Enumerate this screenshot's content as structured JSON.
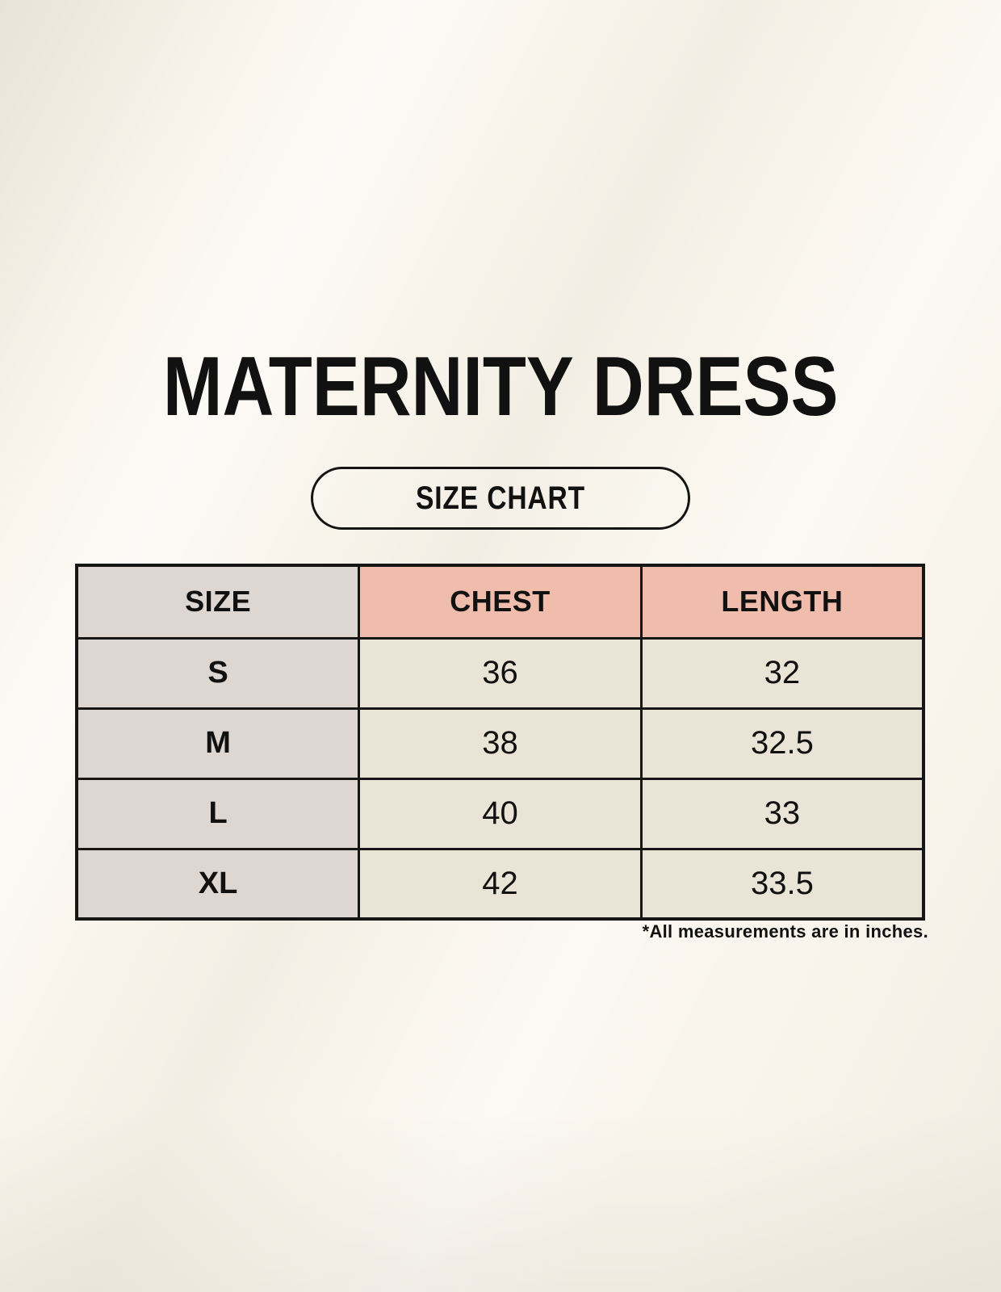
{
  "page": {
    "title": "MATERNITY DRESS",
    "button_label": "SIZE CHART",
    "footnote": "*All measurements are in inches."
  },
  "colors": {
    "background": "#f9f5ec",
    "size_column_bg": "#ddd6d1",
    "measure_header_bg": "#f0bcab",
    "value_cell_bg": "#eae4d7",
    "border": "#161616",
    "text": "#111111"
  },
  "table": {
    "headers": [
      {
        "label": "SIZE"
      },
      {
        "label": "CHEST"
      },
      {
        "label": "LENGTH"
      }
    ],
    "rows": [
      {
        "size": "S",
        "chest": "36",
        "length": "32"
      },
      {
        "size": "M",
        "chest": "38",
        "length": "32.5"
      },
      {
        "size": "L",
        "chest": "40",
        "length": "33"
      },
      {
        "size": "XL",
        "chest": "42",
        "length": "33.5"
      }
    ]
  },
  "chart_data": {
    "type": "table",
    "title": "MATERNITY DRESS",
    "columns": [
      "SIZE",
      "CHEST",
      "LENGTH"
    ],
    "rows": [
      [
        "S",
        36,
        32
      ],
      [
        "M",
        38,
        32.5
      ],
      [
        "L",
        40,
        33
      ],
      [
        "XL",
        42,
        33.5
      ]
    ],
    "units": "inches"
  }
}
